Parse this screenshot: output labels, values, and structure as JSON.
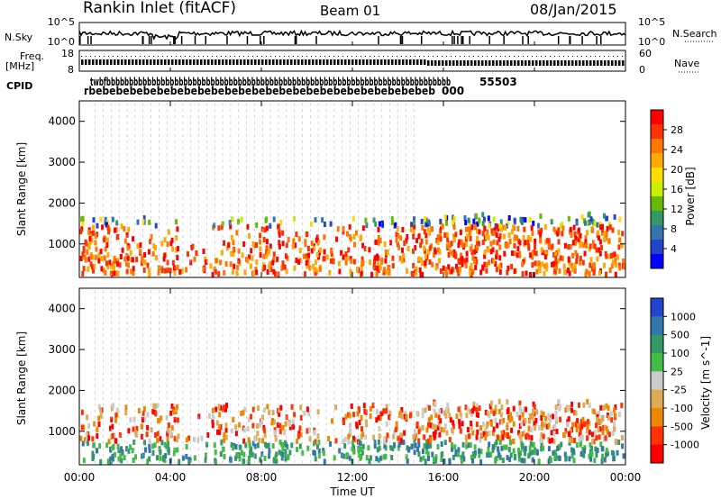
{
  "header": {
    "station": "Rankin Inlet (fitACF)",
    "beam": "Beam 01",
    "date": "08/Jan/2015"
  },
  "noise_panel": {
    "left_label": "N.Sky",
    "right_label": "N.Search",
    "left_ticks": [
      "10^5",
      "10^0"
    ],
    "right_ticks": [
      "10^5",
      "10^0"
    ]
  },
  "freq_panel": {
    "left_label_1": "Freq.",
    "left_label_2": "[MHz]",
    "right_label": "Nave",
    "left_ticks": [
      "18",
      "8"
    ],
    "right_ticks": [
      "60",
      "0"
    ]
  },
  "cpid": {
    "label": "CPID",
    "text_row1": "twbfbbbbbbbbbbbbbbbbbbbbbbbbbbbbbbbbbbbbbbbbbbbbbbbbbbbbbbbbbbbbbbbbbbbbbbbbbbbb",
    "text_row2": "rbebebebebebebebebebebebebebebebebebebebebebebebebeb",
    "text_tail": "55503",
    "text_tail2": "000"
  },
  "chart_data": [
    {
      "type": "heatmap",
      "title": "",
      "xlabel": "",
      "ylabel": "Slant Range [km]",
      "x_range": [
        "00:00",
        "24:00"
      ],
      "y_range": [
        180,
        4500
      ],
      "y_ticks": [
        1000,
        2000,
        3000,
        4000
      ],
      "colorbar": {
        "label": "Power [dB]",
        "ticks": [
          28,
          24,
          20,
          16,
          12,
          8,
          4
        ],
        "colors": [
          "#ff0000",
          "#ff3300",
          "#ff7700",
          "#ffaa00",
          "#ffdd00",
          "#ccee00",
          "#66bb00",
          "#339966",
          "#3377aa",
          "#2244cc",
          "#0000ff"
        ]
      }
    },
    {
      "type": "heatmap",
      "title": "",
      "xlabel": "Time UT",
      "ylabel": "Slant Range [km]",
      "x_range": [
        "00:00",
        "24:00"
      ],
      "x_ticks": [
        "00:00",
        "04:00",
        "08:00",
        "12:00",
        "16:00",
        "20:00",
        "00:00"
      ],
      "y_range": [
        180,
        4500
      ],
      "y_ticks": [
        1000,
        2000,
        3000,
        4000
      ],
      "colorbar": {
        "label": "Velocity [m s^-1]",
        "ticks": [
          1000,
          500,
          100,
          25,
          -25,
          -100,
          -500,
          -1000
        ],
        "colors": [
          "#2244cc",
          "#3377aa",
          "#339966",
          "#44bb44",
          "#cccccc",
          "#ddaa55",
          "#ee8800",
          "#ff3300",
          "#ff0000"
        ]
      }
    }
  ]
}
